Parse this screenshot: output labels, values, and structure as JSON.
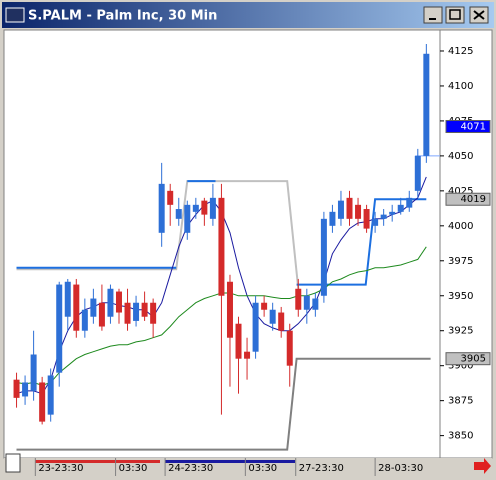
{
  "chart_data": {
    "type": "candlestick",
    "title": "S.PALM - Palm Inc, 30 Min",
    "up_color": "#2d6fd6",
    "down_color": "#d42a2a",
    "ylim": [
      3834,
      4140
    ],
    "yticks": [
      3850,
      3875,
      3900,
      3925,
      3950,
      3975,
      4000,
      4025,
      4050,
      4075,
      4100,
      4125
    ],
    "xlim": [
      -1,
      49.6
    ],
    "xticks": [
      {
        "value": 2.2,
        "label": "23-23:30"
      },
      {
        "value": 11.6,
        "label": "03:30"
      },
      {
        "value": 17.4,
        "label": "24-23:30"
      },
      {
        "value": 26.8,
        "label": "03:30"
      },
      {
        "value": 32.7,
        "label": "27-23:30"
      },
      {
        "value": 42,
        "label": "28-03:30"
      }
    ],
    "open": [
      3890,
      3878,
      3882,
      3888,
      3865,
      3895,
      3935,
      3958,
      3925,
      3935,
      3945,
      3935,
      3953,
      3945,
      3932,
      3945,
      3945,
      3995,
      4025,
      4005,
      3995,
      4010,
      4018,
      4005,
      4020,
      3960,
      3930,
      3910,
      3910,
      3945,
      3930,
      3938,
      3925,
      3955,
      3940,
      3940,
      3950,
      4000,
      4005,
      4020,
      4015,
      4012,
      4000,
      4005,
      4008,
      4010,
      4013,
      4025,
      4050
    ],
    "close": [
      3877,
      3888,
      3908,
      3860,
      3893,
      3958,
      3960,
      3925,
      3940,
      3948,
      3928,
      3955,
      3938,
      3930,
      3945,
      3935,
      3930,
      4030,
      4015,
      4012,
      4015,
      4015,
      4008,
      4020,
      3950,
      3920,
      3905,
      3905,
      3945,
      3940,
      3940,
      3925,
      3900,
      3940,
      3950,
      3948,
      4005,
      4010,
      4018,
      4005,
      4005,
      3998,
      4005,
      4008,
      4010,
      4015,
      4020,
      4050,
      4123
    ],
    "high": [
      3895,
      3893,
      3925,
      3892,
      3898,
      3960,
      3962,
      3962,
      3948,
      3955,
      3958,
      3958,
      3955,
      3955,
      3950,
      3953,
      3948,
      4045,
      4030,
      4020,
      4018,
      4020,
      4020,
      4030,
      4030,
      3965,
      3935,
      3920,
      3950,
      3950,
      3945,
      3942,
      3930,
      3962,
      3955,
      3952,
      4010,
      4015,
      4025,
      4025,
      4020,
      4015,
      4010,
      4012,
      4015,
      4020,
      4025,
      4055,
      4130
    ],
    "low": [
      3870,
      3872,
      3875,
      3858,
      3860,
      3885,
      3925,
      3920,
      3920,
      3930,
      3925,
      3930,
      3930,
      3925,
      3928,
      3932,
      3920,
      3985,
      4000,
      4000,
      3990,
      4005,
      4000,
      4000,
      3865,
      3885,
      3880,
      3890,
      3905,
      3935,
      3925,
      3920,
      3885,
      3935,
      3930,
      3935,
      3945,
      3995,
      4000,
      4000,
      4000,
      3995,
      3995,
      4000,
      4003,
      4008,
      4010,
      4020,
      4045
    ],
    "moving_averages": [
      {
        "color": "#1a1aa0",
        "values": [
          3880,
          3882,
          3882,
          3880,
          3890,
          3910,
          3925,
          3935,
          3940,
          3942,
          3945,
          3945,
          3943,
          3942,
          3940,
          3940,
          3935,
          3945,
          3965,
          3985,
          4000,
          4008,
          4015,
          4018,
          4010,
          3995,
          3970,
          3950,
          3937,
          3930,
          3927,
          3925,
          3925,
          3930,
          3937,
          3945,
          3960,
          3980,
          3990,
          3998,
          4002,
          4003,
          4005,
          4005,
          4008,
          4010,
          4015,
          4020,
          4035
        ]
      },
      {
        "color": "#1e8a1e",
        "values": [
          3888,
          3887,
          3888,
          3886,
          3888,
          3895,
          3900,
          3905,
          3908,
          3910,
          3912,
          3914,
          3915,
          3915,
          3917,
          3918,
          3920,
          3922,
          3928,
          3935,
          3940,
          3945,
          3948,
          3950,
          3952,
          3952,
          3950,
          3950,
          3950,
          3950,
          3949,
          3948,
          3948,
          3950,
          3950,
          3952,
          3955,
          3960,
          3962,
          3965,
          3967,
          3968,
          3970,
          3970,
          3971,
          3972,
          3974,
          3976,
          3985
        ]
      }
    ],
    "overlays": [
      {
        "color": "#c0c0c0",
        "width": 2,
        "x": [
          0,
          18.7,
          20,
          31.7,
          33
        ],
        "values": [
          3969,
          3969,
          4032,
          4032,
          3955
        ]
      },
      {
        "color": "#808080",
        "width": 2,
        "x": [
          0,
          31.7,
          32.8,
          48.5
        ],
        "values": [
          3840,
          3840,
          3905,
          3905
        ]
      },
      {
        "color": "#1c6fe0",
        "width": 2,
        "x": [
          0,
          18.7,
          null,
          20,
          23.3,
          null,
          32.8,
          40.9,
          42,
          48
        ],
        "values": [
          3970,
          3970,
          null,
          4032,
          4032,
          null,
          3958,
          3958,
          4019,
          4019
        ]
      },
      {
        "color": "#7fa8ff",
        "width": 1,
        "x": [
          46.7,
          49.6
        ],
        "values": [
          4050,
          4050
        ]
      }
    ],
    "price_markers": [
      {
        "value": 4071,
        "color": "#0000ff",
        "text_color": "#ffffff"
      },
      {
        "value": 4019,
        "color": "#c0c0c0",
        "text_color": "#000000"
      },
      {
        "value": 3905,
        "color": "#c0c0c0",
        "text_color": "#000000"
      }
    ]
  }
}
